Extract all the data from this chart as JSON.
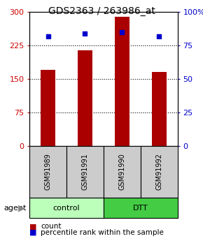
{
  "title": "GDS2363 / 263986_at",
  "samples": [
    "GSM91989",
    "GSM91991",
    "GSM91990",
    "GSM91992"
  ],
  "counts": [
    170,
    215,
    290,
    165
  ],
  "percentiles": [
    82,
    84,
    85,
    82
  ],
  "ylim_left": [
    0,
    300
  ],
  "ylim_right": [
    0,
    100
  ],
  "yticks_left": [
    0,
    75,
    150,
    225,
    300
  ],
  "yticks_right": [
    0,
    25,
    50,
    75,
    100
  ],
  "yticklabels_left": [
    "0",
    "75",
    "150",
    "225",
    "300"
  ],
  "yticklabels_right": [
    "0",
    "25",
    "50",
    "75",
    "100%"
  ],
  "bar_color": "#aa0000",
  "dot_color": "#0000cc",
  "groups": [
    {
      "label": "control",
      "color": "#bbffbb"
    },
    {
      "label": "DTT",
      "color": "#44cc44"
    }
  ],
  "legend_count_label": "count",
  "legend_pct_label": "percentile rank within the sample",
  "background_color": "#ffffff",
  "plot_bg_color": "#ffffff",
  "sample_box_color": "#cccccc",
  "title_fontsize": 10,
  "tick_fontsize": 8,
  "bar_width": 0.4
}
